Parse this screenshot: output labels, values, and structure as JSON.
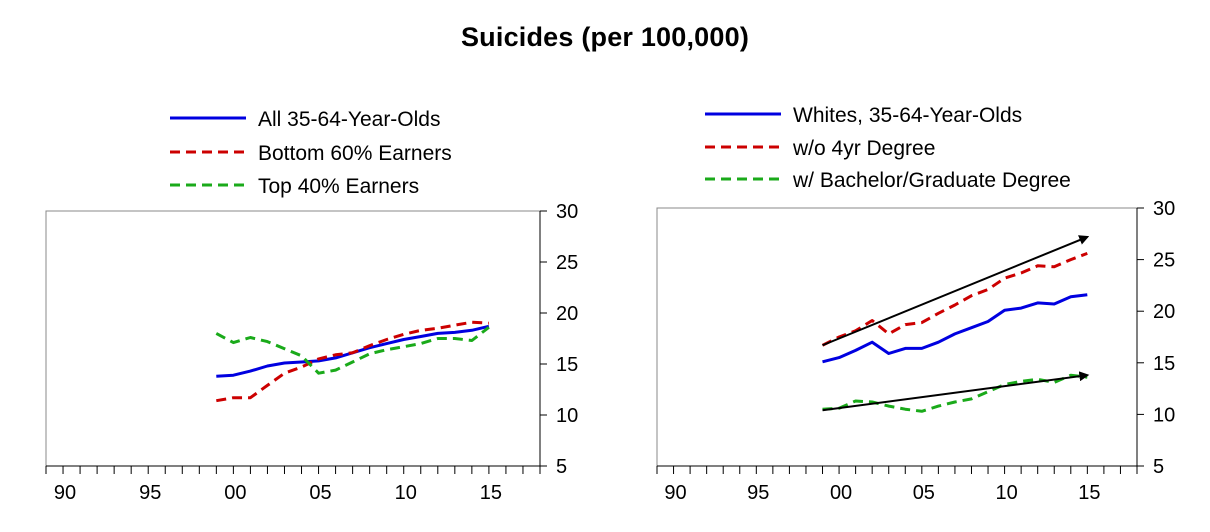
{
  "title": "Suicides (per 100,000)",
  "chart_data": [
    {
      "type": "line",
      "x_tick_labels": [
        "90",
        "95",
        "00",
        "05",
        "10",
        "15"
      ],
      "x_ticks": [
        1990,
        1995,
        2000,
        2005,
        2010,
        2015
      ],
      "xlim": [
        1989,
        2018
      ],
      "ylim": [
        5,
        30
      ],
      "y_ticks": [
        5,
        10,
        15,
        20,
        25,
        30
      ],
      "y_axis_side": "right",
      "legend_position": "top",
      "series": [
        {
          "name": "All 35-64-Year-Olds",
          "color": "#0000e0",
          "style": "solid",
          "x": [
            1999,
            2000,
            2001,
            2002,
            2003,
            2004,
            2005,
            2006,
            2007,
            2008,
            2009,
            2010,
            2011,
            2012,
            2013,
            2014,
            2015
          ],
          "values": [
            13.8,
            13.9,
            14.3,
            14.8,
            15.1,
            15.2,
            15.3,
            15.6,
            16.1,
            16.6,
            17.0,
            17.4,
            17.7,
            18.0,
            18.1,
            18.3,
            18.7
          ]
        },
        {
          "name": "Bottom 60% Earners",
          "color": "#cc0000",
          "style": "dashed",
          "x": [
            1999,
            2000,
            2001,
            2002,
            2003,
            2004,
            2005,
            2006,
            2007,
            2008,
            2009,
            2010,
            2011,
            2012,
            2013,
            2014,
            2015
          ],
          "values": [
            11.4,
            11.7,
            11.7,
            12.9,
            14.1,
            14.7,
            15.5,
            15.9,
            16.1,
            16.8,
            17.4,
            17.9,
            18.3,
            18.5,
            18.8,
            19.1,
            19.0
          ]
        },
        {
          "name": "Top 40% Earners",
          "color": "#1aaa1a",
          "style": "dashed",
          "x": [
            1999,
            2000,
            2001,
            2002,
            2003,
            2004,
            2005,
            2006,
            2007,
            2008,
            2009,
            2010,
            2011,
            2012,
            2013,
            2014,
            2015
          ],
          "values": [
            18.0,
            17.1,
            17.6,
            17.2,
            16.5,
            15.8,
            14.1,
            14.4,
            15.2,
            16.0,
            16.4,
            16.7,
            17.0,
            17.5,
            17.5,
            17.3,
            18.6
          ]
        }
      ],
      "annotations": []
    },
    {
      "type": "line",
      "x_tick_labels": [
        "90",
        "95",
        "00",
        "05",
        "10",
        "15"
      ],
      "x_ticks": [
        1990,
        1995,
        2000,
        2005,
        2010,
        2015
      ],
      "xlim": [
        1989,
        2018
      ],
      "ylim": [
        5,
        30
      ],
      "y_ticks": [
        5,
        10,
        15,
        20,
        25,
        30
      ],
      "y_axis_side": "right",
      "legend_position": "top",
      "series": [
        {
          "name": "Whites, 35-64-Year-Olds",
          "color": "#0000e0",
          "style": "solid",
          "x": [
            1999,
            2000,
            2001,
            2002,
            2003,
            2004,
            2005,
            2006,
            2007,
            2008,
            2009,
            2010,
            2011,
            2012,
            2013,
            2014,
            2015
          ],
          "values": [
            15.1,
            15.5,
            16.2,
            17.0,
            15.9,
            16.4,
            16.4,
            17.0,
            17.8,
            18.4,
            19.0,
            20.1,
            20.3,
            20.8,
            20.7,
            21.4,
            21.6
          ]
        },
        {
          "name": "w/o 4yr Degree",
          "color": "#cc0000",
          "style": "dashed",
          "x": [
            1999,
            2000,
            2001,
            2002,
            2003,
            2004,
            2005,
            2006,
            2007,
            2008,
            2009,
            2010,
            2011,
            2012,
            2013,
            2014,
            2015
          ],
          "values": [
            16.7,
            17.5,
            18.1,
            19.1,
            17.8,
            18.7,
            18.9,
            19.8,
            20.6,
            21.5,
            22.1,
            23.2,
            23.7,
            24.4,
            24.3,
            25.0,
            25.6
          ]
        },
        {
          "name": "w/ Bachelor/Graduate Degree",
          "color": "#1aaa1a",
          "style": "dashed",
          "x": [
            1999,
            2000,
            2001,
            2002,
            2003,
            2004,
            2005,
            2006,
            2007,
            2008,
            2009,
            2010,
            2011,
            2012,
            2013,
            2014,
            2015
          ],
          "values": [
            10.5,
            10.6,
            11.3,
            11.2,
            10.8,
            10.5,
            10.3,
            10.8,
            11.2,
            11.5,
            12.2,
            12.9,
            13.2,
            13.4,
            13.1,
            13.8,
            13.6
          ]
        }
      ],
      "annotations": [
        {
          "type": "trend-arrow",
          "from": [
            1999,
            16.7
          ],
          "to": [
            2015,
            27.2
          ]
        },
        {
          "type": "trend-arrow",
          "from": [
            1999,
            10.4
          ],
          "to": [
            2015,
            13.8
          ]
        }
      ]
    }
  ]
}
